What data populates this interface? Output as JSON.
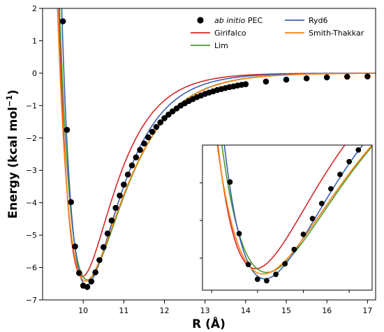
{
  "chart_data": {
    "type": "line",
    "xlabel": "R (Å)",
    "ylabel_main": "Energy (kcal mol",
    "ylabel_sup": "−1",
    "ylabel_end": ")",
    "xlim": [
      9.0,
      17.2
    ],
    "ylim": [
      -7,
      2
    ],
    "xticks": [
      "10",
      "11",
      "12",
      "13",
      "14",
      "15",
      "16",
      "17"
    ],
    "yticks": [
      "−7",
      "−6",
      "−5",
      "−4",
      "−3",
      "−2",
      "−1",
      "0",
      "1",
      "2"
    ],
    "grid": false,
    "legend_position": "top-right",
    "legend": [
      {
        "label_italic": "ab initio",
        "label_rest": " PEC",
        "kind": "marker",
        "color": "#000000"
      },
      {
        "label": "Girifalco",
        "kind": "line",
        "color": "#d62728"
      },
      {
        "label": "Lim",
        "kind": "line",
        "color": "#4a9a2a"
      },
      {
        "label": "Ryd6",
        "kind": "line",
        "color": "#3b5fb0"
      },
      {
        "label": "Smith-Thakkar",
        "kind": "line",
        "color": "#ff7f0e"
      }
    ],
    "scatter_series": {
      "name": "ab initio PEC",
      "x": [
        9.5,
        9.6,
        9.7,
        9.8,
        9.9,
        10.0,
        10.1,
        10.2,
        10.3,
        10.4,
        10.5,
        10.6,
        10.7,
        10.8,
        10.9,
        11.0,
        11.1,
        11.2,
        11.3,
        11.4,
        11.5,
        11.6,
        11.7,
        11.8,
        11.9,
        12.0,
        12.1,
        12.2,
        12.3,
        12.4,
        12.5,
        12.6,
        12.7,
        12.8,
        12.9,
        13.0,
        13.1,
        13.2,
        13.3,
        13.4,
        13.5,
        13.6,
        13.7,
        13.8,
        13.9,
        14.0,
        14.5,
        15.0,
        15.5,
        16.0,
        16.5,
        17.0
      ],
      "y": [
        1.6,
        -1.75,
        -3.98,
        -5.35,
        -6.17,
        -6.56,
        -6.6,
        -6.43,
        -6.15,
        -5.77,
        -5.37,
        -4.95,
        -4.55,
        -4.16,
        -3.78,
        -3.44,
        -3.13,
        -2.85,
        -2.6,
        -2.37,
        -2.17,
        -1.98,
        -1.81,
        -1.66,
        -1.52,
        -1.39,
        -1.28,
        -1.18,
        -1.09,
        -1.0,
        -0.93,
        -0.86,
        -0.8,
        -0.74,
        -0.69,
        -0.64,
        -0.6,
        -0.56,
        -0.52,
        -0.49,
        -0.46,
        -0.43,
        -0.41,
        -0.38,
        -0.36,
        -0.34,
        -0.26,
        -0.2,
        -0.16,
        -0.13,
        -0.11,
        -0.1
      ]
    },
    "series": [
      {
        "name": "Girifalco",
        "color": "#d62728",
        "D": 6.28,
        "Re": 9.98,
        "a": 1.32
      },
      {
        "name": "Lim",
        "color": "#4a9a2a",
        "D": 6.38,
        "Re": 10.1,
        "a": 1.12
      },
      {
        "name": "Ryd6",
        "color": "#3b5fb0",
        "D": 6.55,
        "Re": 10.08,
        "a": 1.25
      },
      {
        "name": "Smith-Thakkar",
        "color": "#ff7f0e",
        "D": 6.42,
        "Re": 10.06,
        "a": 1.1
      }
    ],
    "inset": {
      "xlim": [
        9.4,
        11.25
      ],
      "ylim": [
        -6.85,
        -3.0
      ]
    }
  }
}
